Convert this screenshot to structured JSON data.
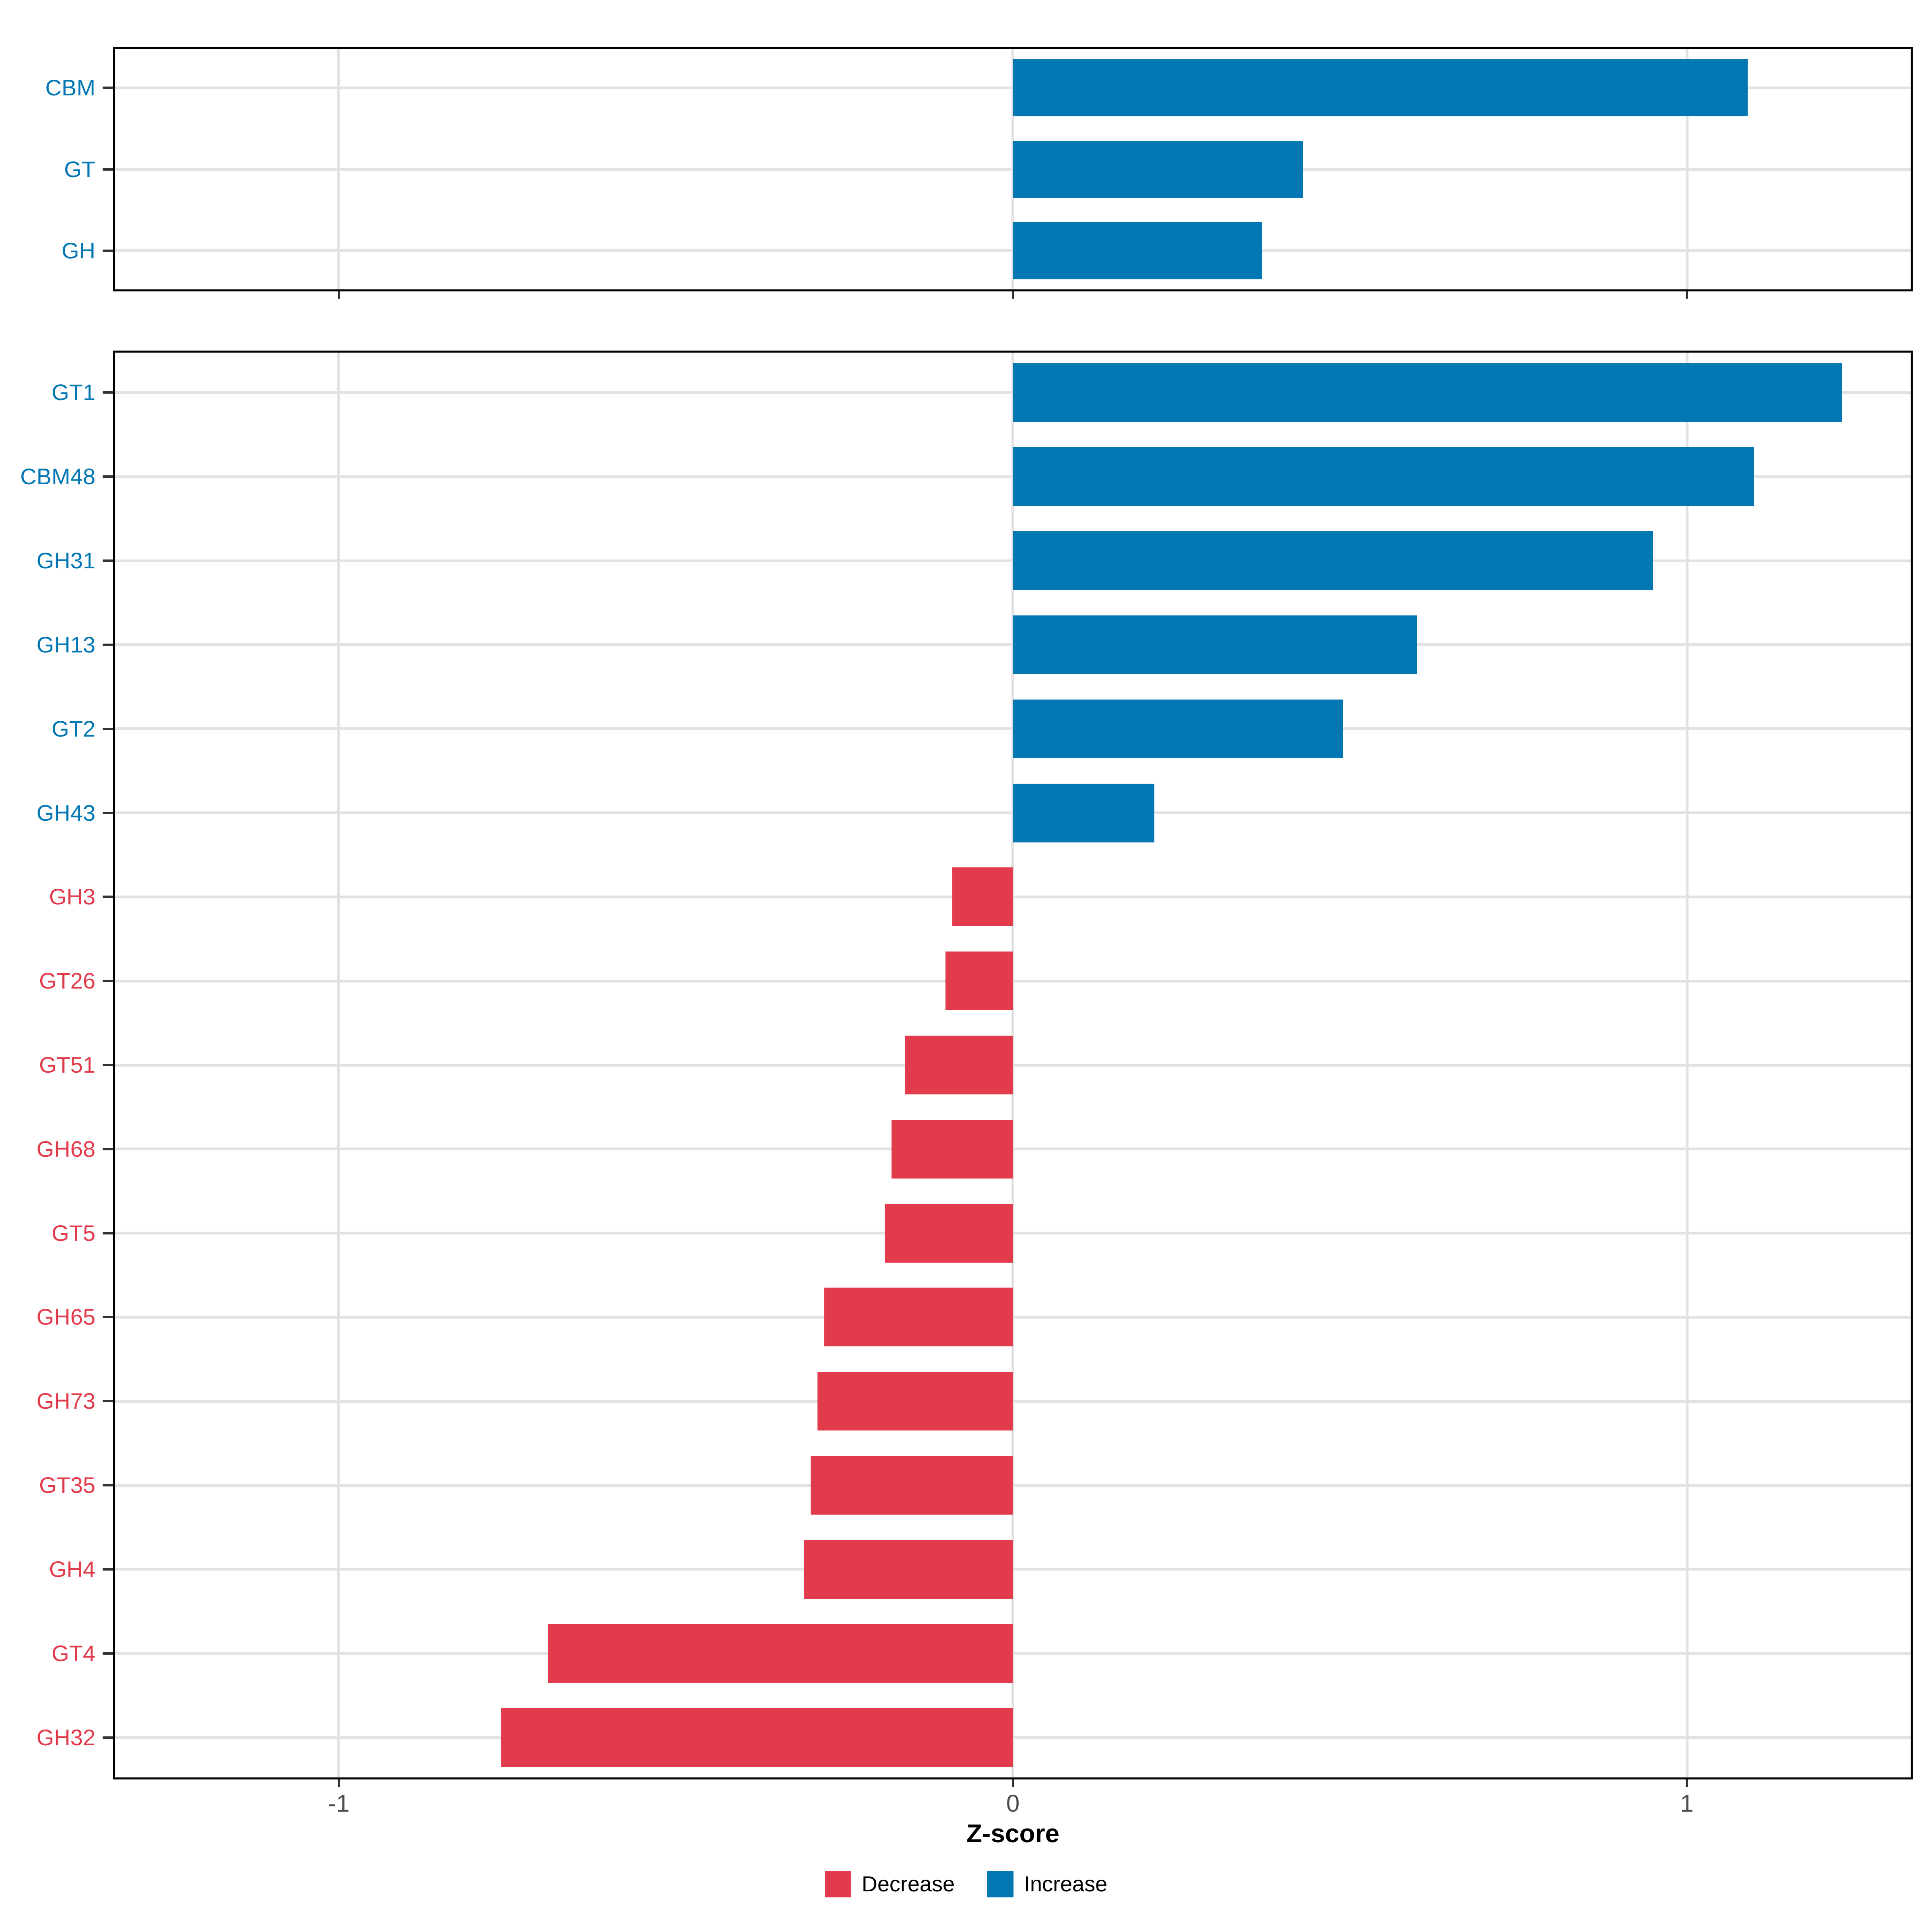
{
  "figure": {
    "x_axis": {
      "label": "Z-score",
      "tick_labels": [
        "-1",
        "0",
        "1"
      ],
      "tick_values": [
        -1,
        0,
        1
      ],
      "domain": [
        -1.335,
        1.335
      ]
    },
    "legend": {
      "items": [
        {
          "label": "Decrease",
          "color": "#E23B4B"
        },
        {
          "label": "Increase",
          "color": "#0277B4"
        }
      ]
    },
    "colors": {
      "increase": "#0277B4",
      "decrease": "#E23B4B",
      "grid": "#E2E2E2",
      "panel_border": "#000000",
      "axis_text": "#4D4D4D",
      "tick_mark": "#333333",
      "background": "#ffffff"
    }
  },
  "chart_data": [
    {
      "type": "bar",
      "orientation": "horizontal",
      "title": "",
      "panel": "cazyme-classes",
      "xlabel": "Z-score",
      "xlim": [
        -1.335,
        1.335
      ],
      "grid": "on",
      "legend_position": "bottom",
      "categories": [
        "CBM",
        "GT",
        "GH"
      ],
      "values": [
        1.09,
        0.43,
        0.37
      ],
      "series_colors": [
        "#0277B4",
        "#0277B4",
        "#0277B4"
      ]
    },
    {
      "type": "bar",
      "orientation": "horizontal",
      "title": "",
      "panel": "cazyme-families",
      "xlabel": "Z-score",
      "xlim": [
        -1.335,
        1.335
      ],
      "grid": "on",
      "legend_position": "bottom",
      "categories": [
        "GT1",
        "CBM48",
        "GH31",
        "GH13",
        "GT2",
        "GH43",
        "GH3",
        "GT26",
        "GT51",
        "GH68",
        "GT5",
        "GH65",
        "GH73",
        "GT35",
        "GH4",
        "GT4",
        "GH32"
      ],
      "values": [
        1.23,
        1.1,
        0.95,
        0.6,
        0.49,
        0.21,
        -0.09,
        -0.1,
        -0.16,
        -0.18,
        -0.19,
        -0.28,
        -0.29,
        -0.3,
        -0.31,
        -0.69,
        -0.76
      ]
    }
  ]
}
